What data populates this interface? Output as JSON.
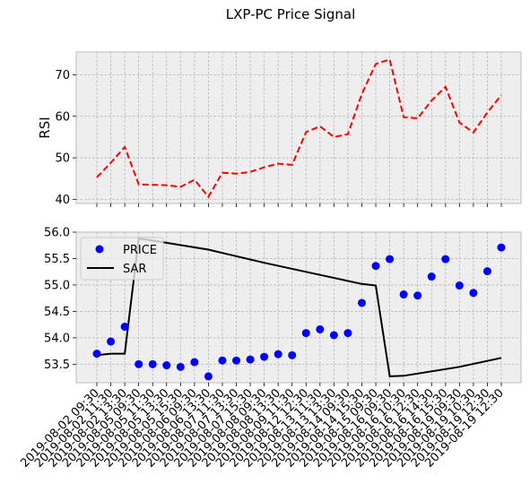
{
  "chart_data": {
    "title": "LXP-PC Price Signal",
    "x_labels": [
      "2019-08-02 09:30",
      "2019-08-02 11:30",
      "2019-08-02 13:30",
      "2019-08-05 09:30",
      "2019-08-05 11:30",
      "2019-08-05 13:30",
      "2019-08-05 15:30",
      "2019-08-06 09:30",
      "2019-08-06 13:30",
      "2019-08-07 11:30",
      "2019-08-07 13:30",
      "2019-08-07 15:30",
      "2019-08-08 09:30",
      "2019-08-08 13:30",
      "2019-08-09 11:30",
      "2019-08-12 12:30",
      "2019-08-13 11:30",
      "2019-08-13 13:30",
      "2019-08-14 09:30",
      "2019-08-14 15:30",
      "2019-08-15 09:30",
      "2019-08-16 09:30",
      "2019-08-16 10:30",
      "2019-08-16 12:30",
      "2019-08-16 14:30",
      "2019-08-16 15:30",
      "2019-08-19 09:30",
      "2019-08-19 10:30",
      "2019-08-19 12:30",
      "2019-08-19 12:30"
    ],
    "rsi_panel": {
      "type": "line",
      "ylabel": "RSI",
      "ylim": [
        39,
        75.5
      ],
      "yticks": [
        40,
        50,
        60,
        70
      ],
      "grid": true,
      "series": [
        {
          "color": "#ff0000",
          "style": "dashed",
          "values": [
            45.3,
            48.8,
            52.6,
            43.6,
            43.5,
            43.4,
            43.0,
            44.7,
            40.6,
            46.4,
            46.2,
            46.6,
            47.7,
            48.6,
            48.3,
            56.2,
            57.6,
            55.0,
            55.7,
            65.4,
            72.6,
            73.7,
            59.8,
            59.5,
            63.8,
            67.1,
            58.5,
            56.1,
            60.9,
            65.1
          ]
        }
      ]
    },
    "price_panel": {
      "type": "scatter+line",
      "ylim": [
        53.15,
        56.0
      ],
      "yticks": [
        53.5,
        54.0,
        54.5,
        55.0,
        55.5,
        56.0
      ],
      "ytick_labels": [
        "53.5",
        "54.0",
        "54.5",
        "55.0",
        "55.5",
        "56.0"
      ],
      "grid": true,
      "legend": "top-left",
      "series": [
        {
          "name": "PRICE",
          "type": "scatter",
          "color": "#0000ff",
          "values": [
            53.7,
            53.93,
            54.21,
            53.5,
            53.5,
            53.48,
            53.45,
            53.54,
            53.27,
            53.57,
            53.57,
            53.59,
            53.64,
            53.69,
            53.67,
            54.09,
            54.16,
            54.05,
            54.09,
            54.66,
            55.36,
            55.49,
            54.82,
            54.8,
            55.16,
            55.49,
            54.99,
            54.85,
            55.26,
            55.71
          ]
        },
        {
          "name": "SAR",
          "type": "line",
          "color": "#000000",
          "points": [
            [
              0,
              53.67
            ],
            [
              1,
              53.7
            ],
            [
              2,
              53.7
            ],
            [
              3,
              55.88
            ],
            [
              4,
              55.84
            ],
            [
              8,
              55.67
            ],
            [
              12,
              55.42
            ],
            [
              16,
              55.19
            ],
            [
              19,
              55.02
            ],
            [
              20,
              54.99
            ],
            [
              21,
              53.27
            ],
            [
              22,
              53.28
            ],
            [
              26,
              53.45
            ],
            [
              29,
              53.62
            ]
          ]
        }
      ]
    }
  }
}
